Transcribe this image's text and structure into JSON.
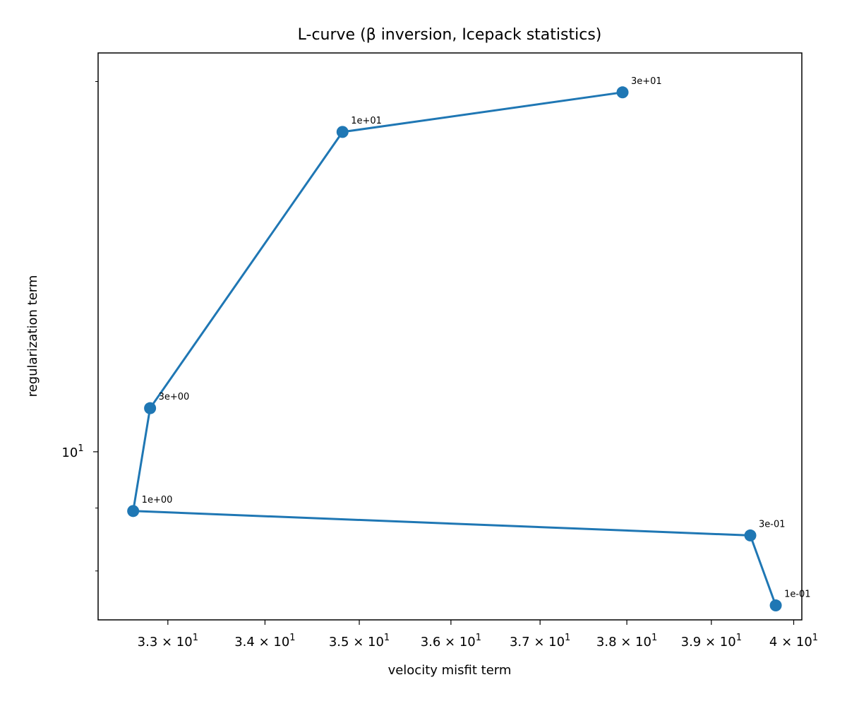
{
  "chart_data": {
    "type": "line",
    "title": "L-curve (β inversion, Icepack statistics)",
    "xlabel": "velocity misfit term",
    "ylabel": "regularization term",
    "xscale": "log",
    "yscale": "log",
    "xlim": [
      32.3,
      40.1
    ],
    "ylim": [
      7.3,
      21.1
    ],
    "grid": false,
    "legend": "none",
    "line_color": "#1f77b4",
    "marker": "circle",
    "x_ticks": [
      {
        "value": 33,
        "label": "3.3 × 10",
        "exp": "1"
      },
      {
        "value": 34,
        "label": "3.4 × 10",
        "exp": "1"
      },
      {
        "value": 35,
        "label": "3.5 × 10",
        "exp": "1"
      },
      {
        "value": 36,
        "label": "3.6 × 10",
        "exp": "1"
      },
      {
        "value": 37,
        "label": "3.7 × 10",
        "exp": "1"
      },
      {
        "value": 38,
        "label": "3.8 × 10",
        "exp": "1"
      },
      {
        "value": 39,
        "label": "3.9 × 10",
        "exp": "1"
      },
      {
        "value": 40,
        "label": "4 × 10",
        "exp": "1"
      }
    ],
    "y_major_ticks": [
      {
        "value": 10,
        "label": "10",
        "exp": "1"
      }
    ],
    "y_minor_ticks": [
      8,
      9,
      20
    ],
    "points": [
      {
        "x": 39.78,
        "y": 7.5,
        "label": "1e-01"
      },
      {
        "x": 39.47,
        "y": 8.55,
        "label": "3e-01"
      },
      {
        "x": 32.65,
        "y": 8.95,
        "label": "1e+00"
      },
      {
        "x": 32.82,
        "y": 10.85,
        "label": "3e+00"
      },
      {
        "x": 34.82,
        "y": 18.2,
        "label": "1e+01"
      },
      {
        "x": 37.95,
        "y": 19.6,
        "label": "3e+01"
      }
    ]
  }
}
